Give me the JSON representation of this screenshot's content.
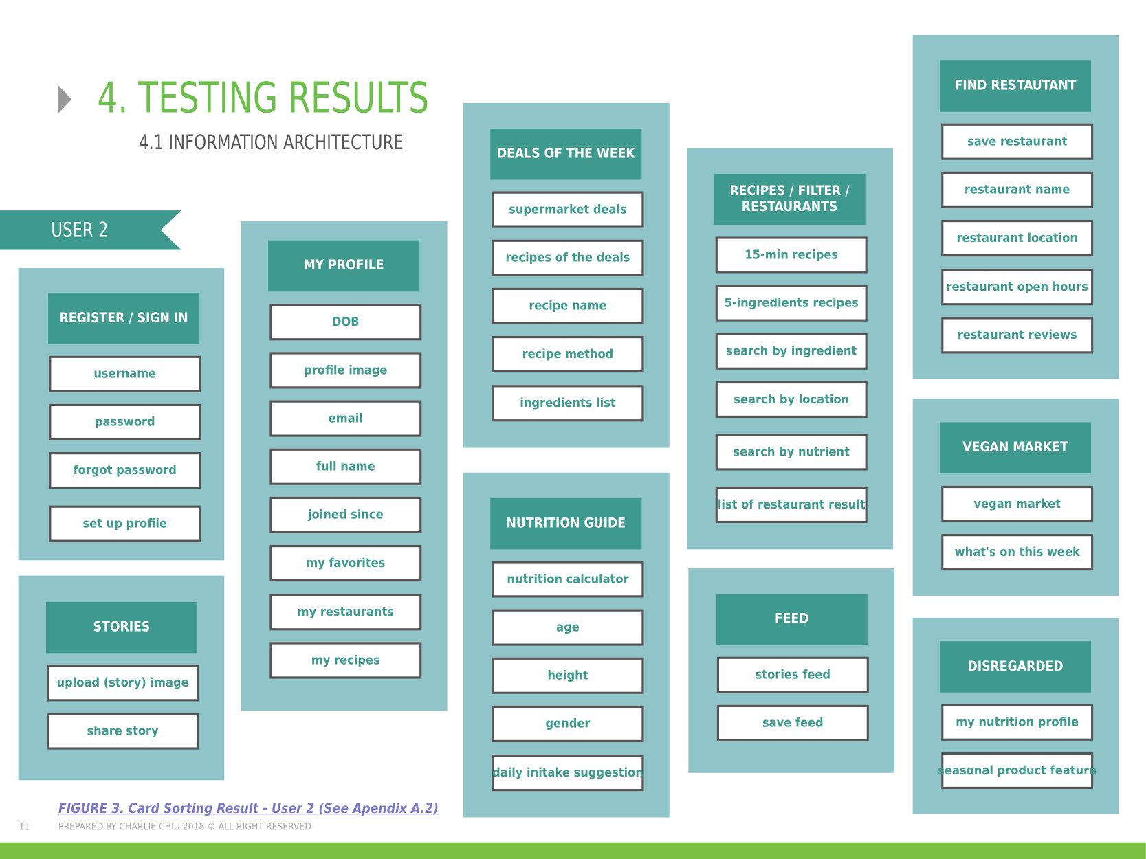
{
  "header": {
    "title": "4. TESTING RESULTS",
    "subtitle": "4.1  INFORMATION ARCHITECTURE",
    "user": "USER 2"
  },
  "groups": [
    {
      "title": "REGISTER / SIGN IN",
      "items": [
        "username",
        "password",
        "forgot password",
        "set up profile"
      ]
    },
    {
      "title": "STORIES",
      "items": [
        "upload (story) image",
        "share story"
      ]
    },
    {
      "title": "MY PROFILE",
      "items": [
        "DOB",
        "profile image",
        "email",
        "full name",
        "joined since",
        "my favorites",
        "my restaurants",
        "my recipes"
      ]
    },
    {
      "title": "DEALS OF THE WEEK",
      "items": [
        "supermarket deals",
        "recipes of the deals",
        "recipe name",
        "recipe method",
        "ingredients list"
      ]
    },
    {
      "title": "NUTRITION GUIDE",
      "items": [
        "nutrition calculator",
        "age",
        "height",
        "gender",
        "daily initake suggestion"
      ]
    },
    {
      "title": "RECIPES / FILTER / RESTAURANTS",
      "items": [
        "15-min recipes",
        "5-ingredients recipes",
        "search by ingredient",
        "search by location",
        "search by nutrient",
        "list of restaurant result"
      ]
    },
    {
      "title": "FEED",
      "items": [
        "stories feed",
        "save feed"
      ]
    },
    {
      "title": "FIND RESTAUTANT",
      "items": [
        "save restaurant",
        "restaurant name",
        "restaurant location",
        "restaurant open hours",
        "restaurant reviews"
      ]
    },
    {
      "title": "VEGAN MARKET",
      "items": [
        "vegan market",
        "what's on this week"
      ]
    },
    {
      "title": "DISREGARDED",
      "items": [
        "my nutrition profile",
        "seasonal product feature"
      ]
    }
  ],
  "footer": {
    "caption": "FIGURE 3. Card Sorting Result - User 2  (See Apendix A.2)",
    "page": "11",
    "credit": "PREPARED BY CHARLIE CHIU 2018  © ALL RIGHT RESERVED"
  }
}
